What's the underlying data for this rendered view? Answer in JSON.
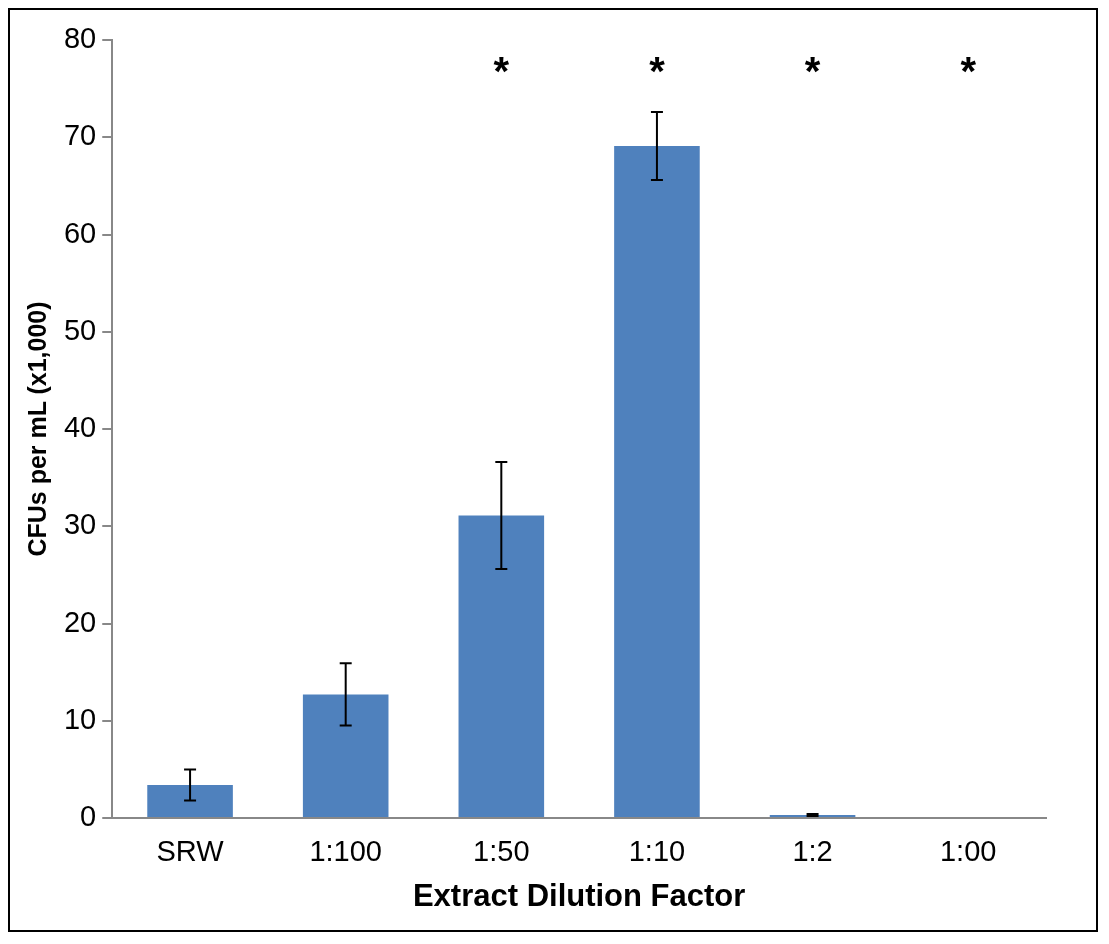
{
  "chart_data": {
    "type": "bar",
    "xlabel": "Extract Dilution Factor",
    "ylabel": "CFUs per mL (x1,000)",
    "categories": [
      "SRW",
      "1:100",
      "1:50",
      "1:10",
      "1:2",
      "1:00"
    ],
    "values": [
      3.4,
      12.7,
      31.1,
      69.1,
      0.3,
      0.1
    ],
    "errors": [
      1.6,
      3.2,
      5.5,
      3.5,
      0.1,
      null
    ],
    "color": "#4f81bd",
    "ylim": [
      0,
      80
    ],
    "yticks": [
      0,
      10,
      20,
      30,
      40,
      50,
      60,
      70,
      80
    ],
    "grid": false,
    "legend": false,
    "annotations": [
      "*",
      "*",
      "*",
      "*"
    ]
  }
}
